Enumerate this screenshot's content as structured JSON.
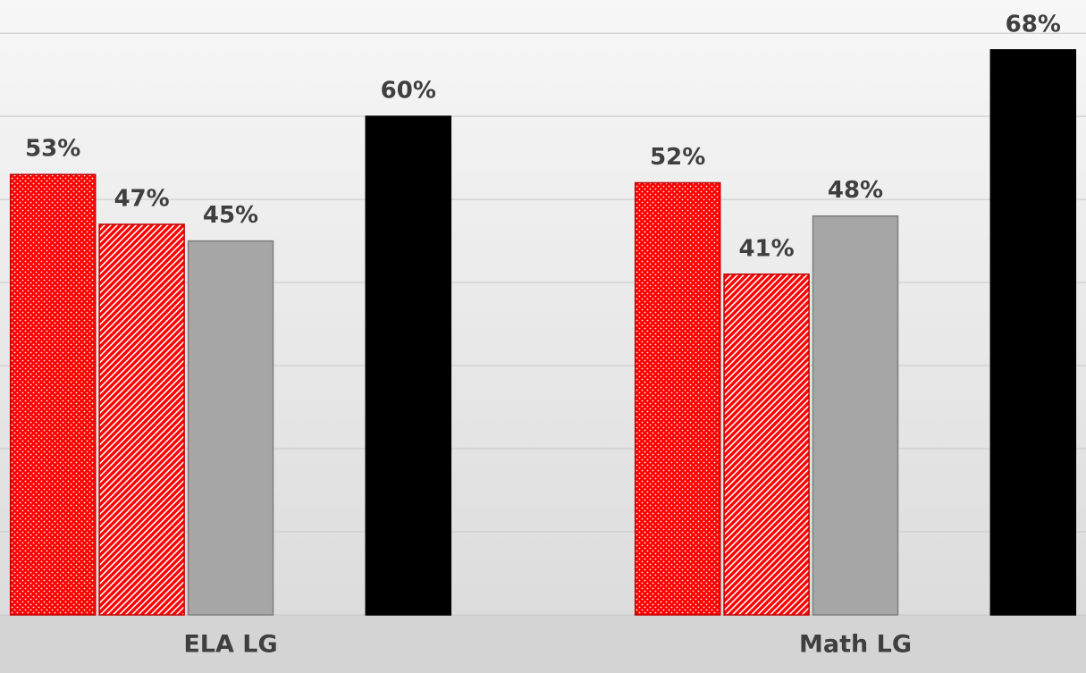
{
  "chart_data": {
    "type": "bar",
    "categories": [
      "ELA LG",
      "Math LG"
    ],
    "series": [
      {
        "color": "#ff0000",
        "pattern": "dots",
        "values": [
          53,
          52
        ],
        "value_labels": [
          "53%",
          "52%"
        ]
      },
      {
        "color": "#ff0000",
        "pattern": "hatch",
        "values": [
          47,
          41
        ],
        "value_labels": [
          "47%",
          "41%"
        ]
      },
      {
        "color": "#a6a6a6",
        "values": [
          45,
          48
        ],
        "value_labels": [
          "45%",
          "48%"
        ]
      },
      {
        "values": [
          null,
          null
        ]
      },
      {
        "color": "#000000",
        "values": [
          60,
          68
        ],
        "value_labels": [
          "60%",
          "68%"
        ]
      }
    ],
    "ylim": [
      0,
      74
    ],
    "yticks": [
      0,
      10,
      20,
      30,
      40,
      50,
      60,
      70
    ],
    "grid": true
  }
}
